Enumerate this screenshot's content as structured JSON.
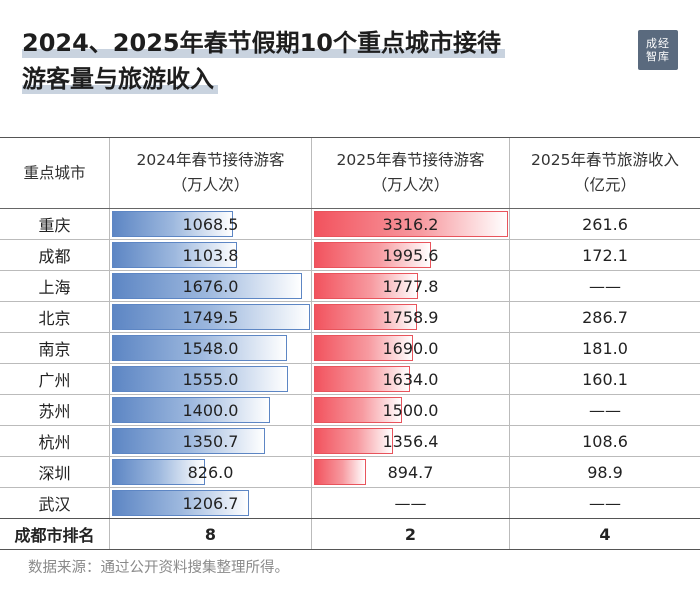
{
  "title": {
    "line1": "2024、2025年春节假期10个重点城市接待",
    "line2": "游客量与旅游收入"
  },
  "logo": {
    "line1": "成经",
    "line2": "智库"
  },
  "colors": {
    "bar_2024": "#5d86c4",
    "bar_2025": "#f2535e"
  },
  "chart_data": {
    "type": "table",
    "columns": [
      {
        "l1": "重点城市",
        "l2": ""
      },
      {
        "l1": "2024年春节接待游客",
        "l2": "（万人次）"
      },
      {
        "l1": "2025年春节接待游客",
        "l2": "（万人次）"
      },
      {
        "l1": "2025年春节旅游收入",
        "l2": "（亿元）"
      }
    ],
    "rows": [
      {
        "city": "重庆",
        "v2024": "1068.5",
        "v2025": "3316.2",
        "income": "261.6"
      },
      {
        "city": "成都",
        "v2024": "1103.8",
        "v2025": "1995.6",
        "income": "172.1"
      },
      {
        "city": "上海",
        "v2024": "1676.0",
        "v2025": "1777.8",
        "income": "——"
      },
      {
        "city": "北京",
        "v2024": "1749.5",
        "v2025": "1758.9",
        "income": "286.7"
      },
      {
        "city": "南京",
        "v2024": "1548.0",
        "v2025": "1690.0",
        "income": "181.0"
      },
      {
        "city": "广州",
        "v2024": "1555.0",
        "v2025": "1634.0",
        "income": "160.1"
      },
      {
        "city": "苏州",
        "v2024": "1400.0",
        "v2025": "1500.0",
        "income": "——"
      },
      {
        "city": "杭州",
        "v2024": "1350.7",
        "v2025": "1356.4",
        "income": "108.6"
      },
      {
        "city": "深圳",
        "v2024": "826.0",
        "v2025": "894.7",
        "income": "98.9"
      },
      {
        "city": "武汉",
        "v2024": "1206.7",
        "v2025": "——",
        "income": "——"
      }
    ],
    "rank_row": {
      "label": "成都市排名",
      "v2024": "8",
      "v2025": "2",
      "income": "4"
    }
  },
  "source": "数据来源：通过公开资料搜集整理所得。"
}
